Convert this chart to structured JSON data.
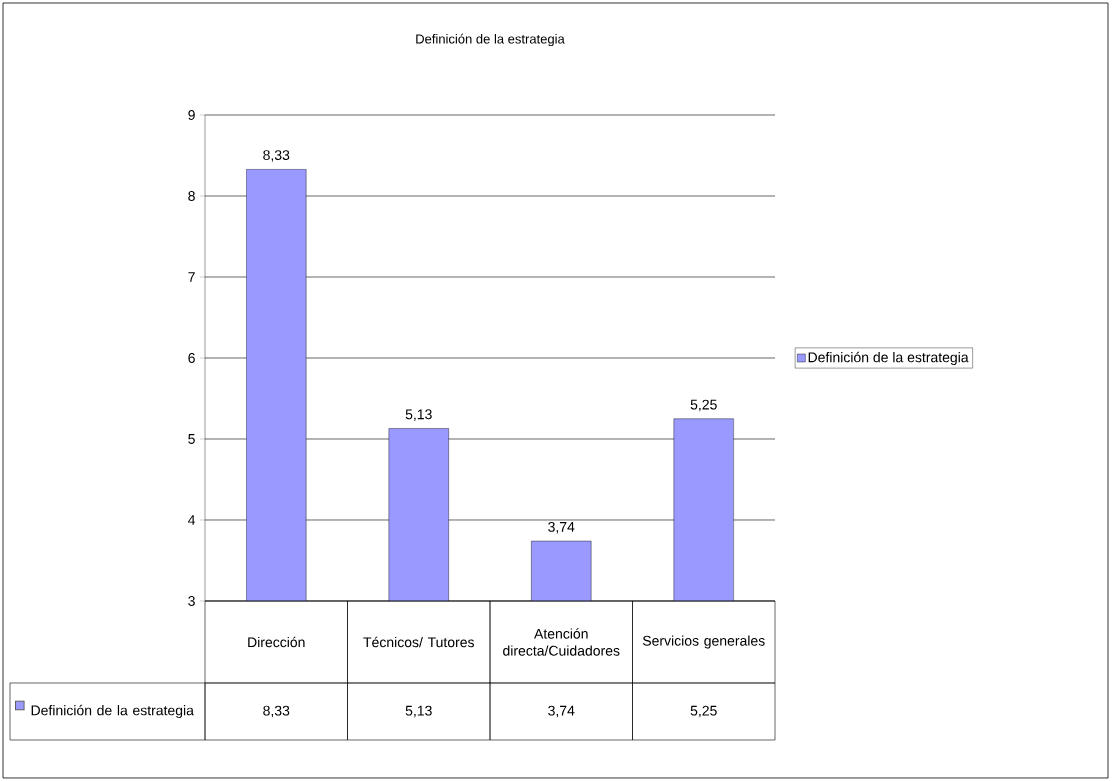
{
  "chart_data": {
    "type": "bar",
    "title": "Definición de la estrategia",
    "categories": [
      "Dirección",
      "Técnicos/ Tutores",
      "Atención directa/Cuidadores",
      "Servicios generales"
    ],
    "series": [
      {
        "name": "Definición de la estrategia",
        "color": "#9999ff",
        "values": [
          8.33,
          5.13,
          3.74,
          5.25
        ],
        "value_labels": [
          "8,33",
          "5,13",
          "3,74",
          "5,25"
        ]
      }
    ],
    "ylim": [
      3,
      9
    ],
    "yticks": [
      3,
      4,
      5,
      6,
      7,
      8,
      9
    ],
    "grid": "y",
    "legend": "right"
  }
}
